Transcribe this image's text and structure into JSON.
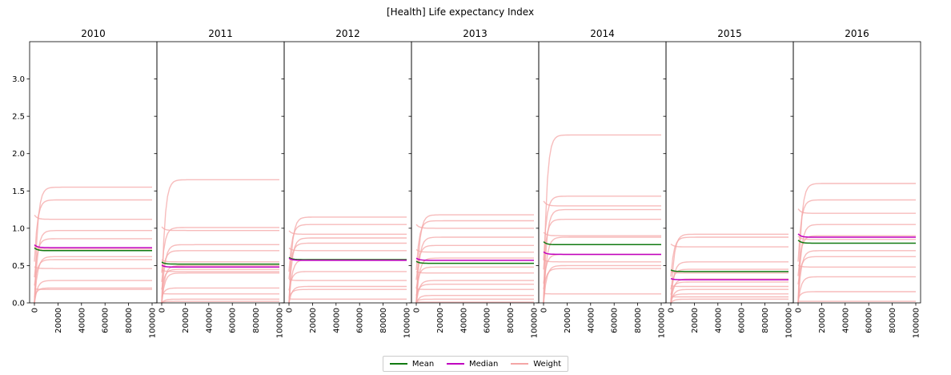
{
  "chart_data": {
    "type": "line",
    "title": "[Health] Life expectancy Index",
    "ylim": [
      0,
      3.5
    ],
    "yticks": [
      "0.0",
      "0.5",
      "1.0",
      "1.5",
      "2.0",
      "2.5",
      "3.0"
    ],
    "xlim": [
      0,
      100000
    ],
    "xticks": [
      "0",
      "20000",
      "40000",
      "60000",
      "80000",
      "100000"
    ],
    "colors": {
      "mean": "#117a11",
      "median": "#c000c0",
      "weight": "#f4a6a6"
    },
    "legend": {
      "placement": "bottom-center",
      "entries": [
        "Mean",
        "Median",
        "Weight"
      ]
    },
    "panels": [
      {
        "title": "2010",
        "mean": 0.7,
        "median": 0.74,
        "weights": [
          1.55,
          1.38,
          1.12,
          0.97,
          0.86,
          0.72,
          0.62,
          0.58,
          0.46,
          0.3,
          0.2,
          0.18
        ]
      },
      {
        "title": "2011",
        "mean": 0.52,
        "median": 0.48,
        "weights": [
          1.65,
          1.01,
          0.97,
          0.78,
          0.7,
          0.55,
          0.5,
          0.45,
          0.42,
          0.4,
          0.2,
          0.12,
          0.05,
          0.02
        ]
      },
      {
        "title": "2012",
        "mean": 0.58,
        "median": 0.57,
        "weights": [
          1.15,
          1.05,
          0.92,
          0.87,
          0.8,
          0.7,
          0.58,
          0.42,
          0.3,
          0.22,
          0.18,
          0.05
        ]
      },
      {
        "title": "2013",
        "mean": 0.53,
        "median": 0.57,
        "weights": [
          1.18,
          1.1,
          1.0,
          0.88,
          0.77,
          0.68,
          0.6,
          0.48,
          0.4,
          0.3,
          0.25,
          0.18,
          0.1,
          0.05,
          0.01
        ]
      },
      {
        "title": "2014",
        "mean": 0.78,
        "median": 0.65,
        "weights": [
          2.25,
          1.43,
          1.3,
          1.25,
          1.12,
          0.9,
          0.88,
          0.65,
          0.55,
          0.5,
          0.46,
          0.12
        ]
      },
      {
        "title": "2015",
        "mean": 0.42,
        "median": 0.31,
        "weights": [
          0.92,
          0.88,
          0.75,
          0.55,
          0.45,
          0.4,
          0.32,
          0.28,
          0.22,
          0.18,
          0.12,
          0.08,
          0.05
        ]
      },
      {
        "title": "2016",
        "mean": 0.8,
        "median": 0.88,
        "weights": [
          1.6,
          1.38,
          1.2,
          1.05,
          0.9,
          0.85,
          0.7,
          0.62,
          0.48,
          0.35,
          0.15,
          0.02
        ]
      }
    ]
  }
}
